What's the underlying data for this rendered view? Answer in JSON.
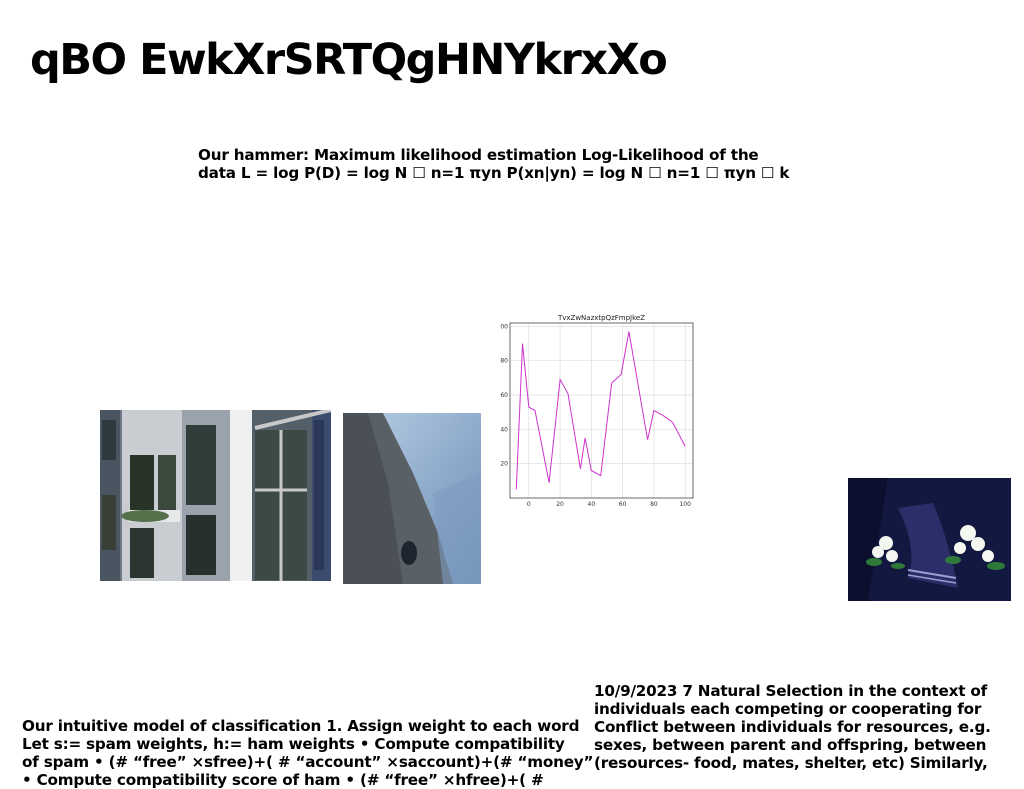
{
  "title": "qBO EwkXrSRTQgHNYkrxXo",
  "equation_block": {
    "lines": [
      "Our hammer: Maximum likelihood estimation Log-Likelihood of the",
      "data L = log P(D) = log N ☐ n=1 πyn P(xn|yn) = log N ☐ n=1 ☐ πyn ☐ k"
    ]
  },
  "left_text": {
    "lines": [
      "Our intuitive model of classification 1. Assign weight to each word",
      "Let s:= spam weights, h:= ham weights • Compute compatibility",
      "of spam • (# “free” ×sfree)+( # “account” ×saccount)+(# “money”",
      "• Compute compatibility score of ham • (# “free” ×hfree)+( #"
    ]
  },
  "right_text": {
    "lines": [
      "10/9/2023 7 Natural Selection in the context of",
      "individuals each competing or cooperating for",
      "Conflict between individuals for resources, e.g.",
      "sexes, between parent and offspring, between",
      "(resources- food, mates, shelter, etc) Similarly,"
    ]
  },
  "images": {
    "building": "building-photo",
    "cliff": "cliff-photo",
    "flowers": "flowers-photo"
  },
  "chart_data": {
    "type": "line",
    "title": "TvxZwNazxtpQzFmpJkeZ",
    "xlabel": "",
    "ylabel": "",
    "xlim": [
      -12,
      105
    ],
    "ylim": [
      0,
      102
    ],
    "xticks": [
      0,
      20,
      40,
      60,
      80,
      100
    ],
    "yticks": [
      20,
      40,
      60,
      80,
      100
    ],
    "grid": true,
    "color": "#cc33cc",
    "series": [
      {
        "x": [
          -8,
          -4,
          0,
          4,
          13,
          20,
          25,
          33,
          36,
          40,
          46,
          53,
          59,
          64,
          76,
          80,
          86,
          92,
          100
        ],
        "values": [
          5,
          90,
          53,
          51,
          9,
          69,
          61,
          17,
          35,
          16,
          13,
          67,
          72,
          97,
          34,
          51,
          48,
          44,
          30
        ]
      }
    ]
  }
}
